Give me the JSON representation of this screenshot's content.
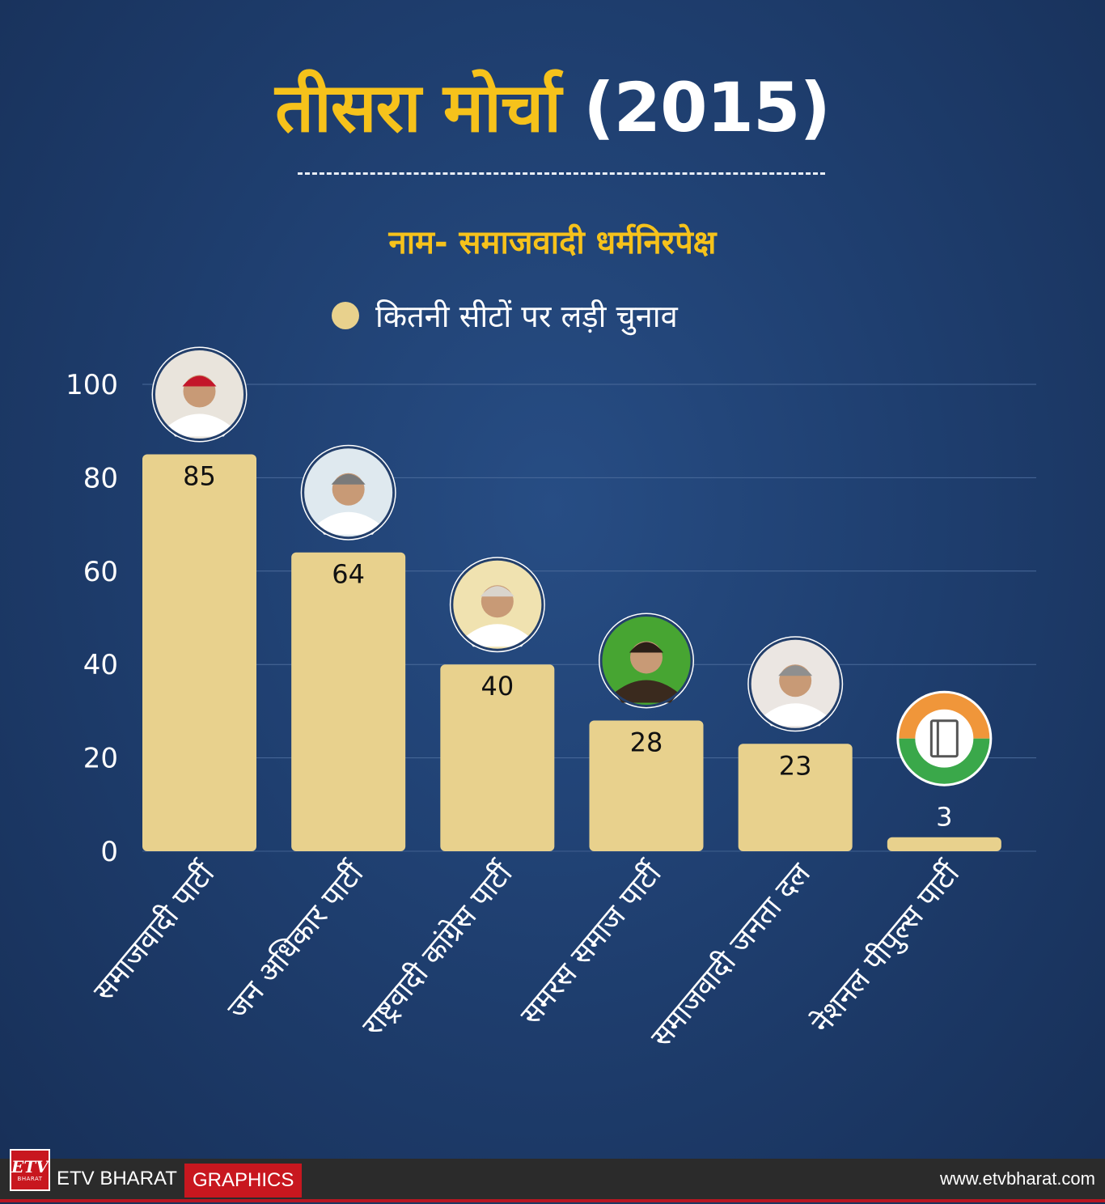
{
  "header": {
    "title_main": "तीसरा मोर्चा",
    "title_year": "(2015)",
    "subtitle": "नाम- समाजवादी धर्मनिरपेक्ष"
  },
  "chart_data": {
    "type": "bar",
    "title": "तीसरा मोर्चा (2015)",
    "subtitle": "नाम- समाजवादी धर्मनिरपेक्ष",
    "categories": [
      "समाजवादी पार्टी",
      "जन अधिकार पार्टी",
      "राष्ट्रवादी कांग्रेस पार्टी",
      "समरस समाज पार्टी",
      "समाजवादी जनता दल",
      "नेशनल पीपुल्स पार्टी"
    ],
    "series": [
      {
        "name": "कितनी सीटों पर लड़ी चुनाव",
        "values": [
          85,
          64,
          40,
          28,
          23,
          3
        ],
        "color": "#e8d18d"
      }
    ],
    "yticks": [
      0,
      20,
      40,
      60,
      80,
      100
    ],
    "ylim": [
      0,
      100
    ],
    "grid": true,
    "legend": "top-center",
    "xlabel": "",
    "ylabel": ""
  },
  "colors": {
    "accent": "#f6c21b",
    "bar": "#e8d18d",
    "brand_red": "#c8171f"
  },
  "footer": {
    "logo_mark": "ETV",
    "logo_sub": "BHARAT",
    "brand": "ETV BHARAT",
    "tag": "GRAPHICS",
    "site": "www.etvbharat.com"
  }
}
